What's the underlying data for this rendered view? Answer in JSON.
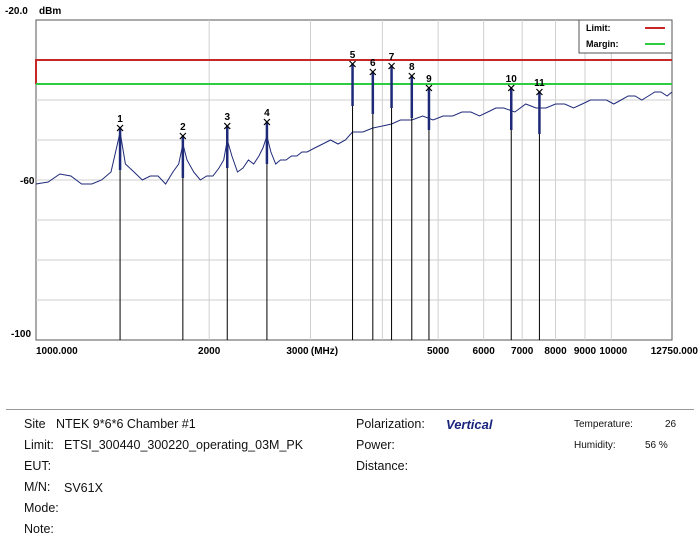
{
  "chart_data": {
    "type": "line",
    "title": "",
    "ylabel": "dBm",
    "xlabel": "(MHz)",
    "xscale": "log",
    "xlim": [
      1000,
      12750
    ],
    "ylim": [
      -100,
      -20
    ],
    "ytick_labels": [
      "-20.0",
      "-60",
      "-100"
    ],
    "xtick_labels": [
      "1000.000",
      "2000",
      "3000",
      "(MHz)",
      "5000",
      "6000",
      "7000",
      "8000",
      "9000",
      "10000",
      "12750.000"
    ],
    "grid": true,
    "legend_position": "top-right",
    "legend": [
      {
        "label": "Limit:",
        "color": "#c62828"
      },
      {
        "label": "Margin:",
        "color": "#2ecc40"
      }
    ],
    "limit": {
      "left": -36,
      "x_start": 1000,
      "right": -30
    },
    "margin": {
      "left": -36,
      "x_start": 1000,
      "right": -36
    },
    "series": [
      {
        "color": "#1e2a78",
        "x": [
          1000,
          1050,
          1100,
          1150,
          1200,
          1250,
          1300,
          1350,
          1380,
          1400,
          1430,
          1480,
          1530,
          1580,
          1630,
          1680,
          1730,
          1770,
          1800,
          1830,
          1880,
          1930,
          1980,
          2030,
          2080,
          2120,
          2150,
          2190,
          2240,
          2290,
          2340,
          2390,
          2440,
          2480,
          2520,
          2560,
          2610,
          2660,
          2720,
          2780,
          2840,
          2900,
          2960,
          3050,
          3150,
          3250,
          3350,
          3450,
          3550,
          3700,
          3850,
          4000,
          4150,
          4300,
          4500,
          4700,
          4900,
          5100,
          5300,
          5500,
          5700,
          5900,
          6100,
          6300,
          6500,
          6800,
          7100,
          7400,
          7700,
          8000,
          8300,
          8600,
          8900,
          9200,
          9500,
          9800,
          10100,
          10400,
          10700,
          11000,
          11300,
          11600,
          11900,
          12200,
          12500,
          12750
        ],
        "y": [
          -61,
          -60.5,
          -58.5,
          -59,
          -61,
          -61,
          -60,
          -58,
          -52,
          -48,
          -56,
          -58,
          -60,
          -59,
          -59,
          -61,
          -58,
          -56,
          -51,
          -55,
          -58,
          -60,
          -59,
          -59,
          -57,
          -55,
          -50,
          -54,
          -58,
          -57,
          -55,
          -56,
          -54,
          -52,
          -49,
          -53,
          -56,
          -55,
          -55,
          -54,
          -54,
          -53,
          -53,
          -52,
          -51,
          -50,
          -51,
          -50,
          -48,
          -48,
          -47,
          -46.5,
          -46,
          -45,
          -45,
          -44,
          -45,
          -44,
          -44,
          -43,
          -43,
          -44,
          -43,
          -42,
          -42,
          -43,
          -41,
          -42,
          -42,
          -41,
          -41,
          -42,
          -41,
          -40,
          -40,
          -40,
          -41,
          -40,
          -39,
          -39,
          -40,
          -39,
          -38,
          -38,
          -39,
          -38
        ]
      }
    ],
    "markers": [
      {
        "label": "1",
        "x": 1400,
        "y": -47
      },
      {
        "label": "2",
        "x": 1800,
        "y": -49
      },
      {
        "label": "3",
        "x": 2150,
        "y": -46.5
      },
      {
        "label": "4",
        "x": 2520,
        "y": -45.5
      },
      {
        "label": "5",
        "x": 3550,
        "y": -31
      },
      {
        "label": "6",
        "x": 3850,
        "y": -33
      },
      {
        "label": "7",
        "x": 4150,
        "y": -31.5
      },
      {
        "label": "8",
        "x": 4500,
        "y": -34
      },
      {
        "label": "9",
        "x": 4820,
        "y": -37
      },
      {
        "label": "10",
        "x": 6700,
        "y": -37
      },
      {
        "label": "11",
        "x": 7500,
        "y": -38
      }
    ]
  },
  "info": {
    "site_label": "Site",
    "site_value": "NTEK 9*6*6 Chamber #1",
    "limit_label": "Limit:",
    "limit_value": "ETSI_300440_300220_operating_03M_PK",
    "eut_label": "EUT:",
    "mn_label": "M/N:",
    "mn_value": "SV61X",
    "mode_label": "Mode:",
    "note_label": "Note:",
    "polarization_label": "Polarization:",
    "polarization_value": "Vertical",
    "power_label": "Power:",
    "distance_label": "Distance:",
    "temperature_label": "Temperature:",
    "temperature_value": "26",
    "humidity_label": "Humidity:",
    "humidity_value": "56 %"
  }
}
